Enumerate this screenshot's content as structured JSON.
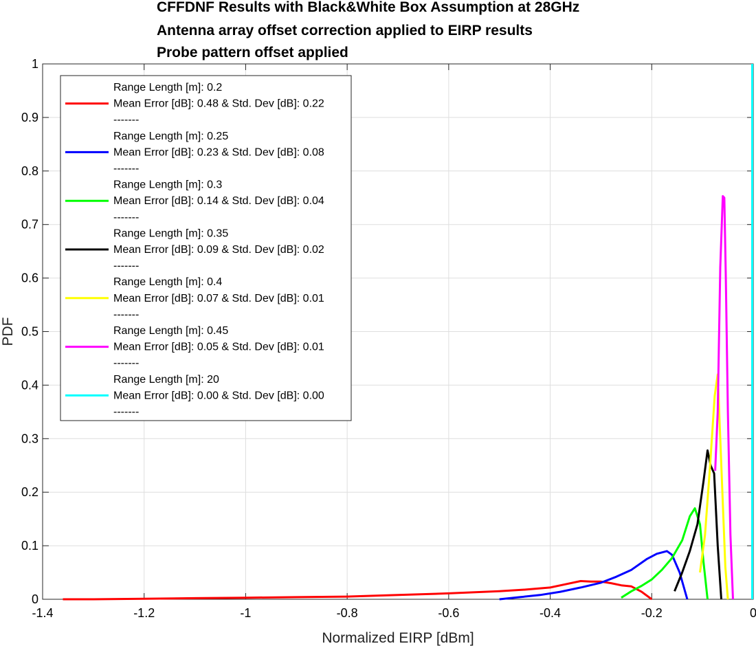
{
  "chart_data": {
    "type": "line",
    "title_lines": [
      "CFFDNF Results with Black&White Box Assumption at 28GHz",
      "Antenna array offset correction applied to EIRP results",
      "Probe pattern offset applied"
    ],
    "xlabel": "Normalized EIRP [dBm]",
    "ylabel": "PDF",
    "xlim": [
      -1.4,
      0
    ],
    "ylim": [
      0,
      1
    ],
    "xticks": [
      -1.4,
      -1.2,
      -1,
      -0.8,
      -0.6,
      -0.4,
      -0.2,
      0
    ],
    "xtick_labels": [
      "-1.4",
      "-1.2",
      "-1",
      "-0.8",
      "-0.6",
      "-0.4",
      "-0.2",
      "0"
    ],
    "yticks": [
      0,
      0.1,
      0.2,
      0.3,
      0.4,
      0.5,
      0.6,
      0.7,
      0.8,
      0.9,
      1
    ],
    "ytick_labels": [
      "0",
      "0.1",
      "0.2",
      "0.3",
      "0.4",
      "0.5",
      "0.6",
      "0.7",
      "0.8",
      "0.9",
      "1"
    ],
    "grid": true,
    "legend_position": "top-left",
    "series": [
      {
        "color": "#ff0000",
        "legend_lines": [
          "Range Length [m]: 0.2",
          "Mean Error [dB]: 0.48 & Std. Dev [dB]: 0.22",
          "-------"
        ],
        "x": [
          -1.36,
          -1.3,
          -1.2,
          -1.1,
          -1.0,
          -0.9,
          -0.8,
          -0.7,
          -0.6,
          -0.5,
          -0.45,
          -0.4,
          -0.37,
          -0.34,
          -0.32,
          -0.3,
          -0.28,
          -0.26,
          -0.24,
          -0.22,
          -0.2
        ],
        "y": [
          0.0,
          0.0,
          0.001,
          0.002,
          0.003,
          0.004,
          0.005,
          0.008,
          0.011,
          0.015,
          0.018,
          0.022,
          0.028,
          0.034,
          0.033,
          0.033,
          0.03,
          0.026,
          0.024,
          0.014,
          0.0
        ]
      },
      {
        "color": "#0000ff",
        "legend_lines": [
          "Range Length [m]: 0.25",
          "Mean Error [dB]: 0.23 & Std. Dev [dB]: 0.08",
          "-------"
        ],
        "x": [
          -0.5,
          -0.46,
          -0.42,
          -0.38,
          -0.34,
          -0.3,
          -0.27,
          -0.24,
          -0.21,
          -0.19,
          -0.17,
          -0.16,
          -0.145,
          -0.13
        ],
        "y": [
          0.0,
          0.004,
          0.008,
          0.014,
          0.022,
          0.031,
          0.042,
          0.055,
          0.075,
          0.085,
          0.09,
          0.083,
          0.05,
          0.0
        ]
      },
      {
        "color": "#00ff00",
        "legend_lines": [
          "Range Length [m]: 0.3",
          "Mean Error [dB]: 0.14 & Std. Dev [dB]: 0.04",
          "-------"
        ],
        "x": [
          -0.26,
          -0.24,
          -0.22,
          -0.2,
          -0.18,
          -0.16,
          -0.14,
          -0.125,
          -0.115,
          -0.105,
          -0.098,
          -0.09
        ],
        "y": [
          0.003,
          0.015,
          0.025,
          0.037,
          0.055,
          0.077,
          0.11,
          0.155,
          0.17,
          0.14,
          0.07,
          0.0
        ]
      },
      {
        "color": "#000000",
        "legend_lines": [
          "Range Length [m]: 0.35",
          "Mean Error [dB]: 0.09 & Std. Dev [dB]: 0.02",
          "-------"
        ],
        "x": [
          -0.155,
          -0.14,
          -0.125,
          -0.11,
          -0.098,
          -0.09,
          -0.084,
          -0.077,
          -0.07,
          -0.063
        ],
        "y": [
          0.015,
          0.05,
          0.09,
          0.14,
          0.22,
          0.278,
          0.25,
          0.235,
          0.1,
          0.0
        ]
      },
      {
        "color": "#ffff00",
        "legend_lines": [
          "Range Length [m]: 0.4",
          "Mean Error [dB]: 0.07 & Std. Dev [dB]: 0.01",
          "-------"
        ],
        "x": [
          -0.105,
          -0.095,
          -0.085,
          -0.076,
          -0.07,
          -0.065,
          -0.06,
          -0.055,
          -0.05
        ],
        "y": [
          0.05,
          0.12,
          0.25,
          0.38,
          0.42,
          0.3,
          0.18,
          0.06,
          0.0
        ]
      },
      {
        "color": "#ff00ff",
        "legend_lines": [
          "Range Length [m]: 0.45",
          "Mean Error [dB]: 0.05 & Std. Dev [dB]: 0.01",
          "-------"
        ],
        "x": [
          -0.075,
          -0.07,
          -0.065,
          -0.06,
          -0.057,
          -0.054,
          -0.05,
          -0.045,
          -0.04
        ],
        "y": [
          0.24,
          0.35,
          0.62,
          0.753,
          0.75,
          0.6,
          0.35,
          0.12,
          0.0
        ]
      },
      {
        "color": "#00ffff",
        "legend_lines": [
          "Range Length [m]: 20",
          "Mean Error [dB]: 0.00 & Std. Dev [dB]: 0.00",
          "-------"
        ],
        "x": [
          -0.002,
          -0.002
        ],
        "y": [
          0.0,
          1.0
        ]
      }
    ]
  }
}
